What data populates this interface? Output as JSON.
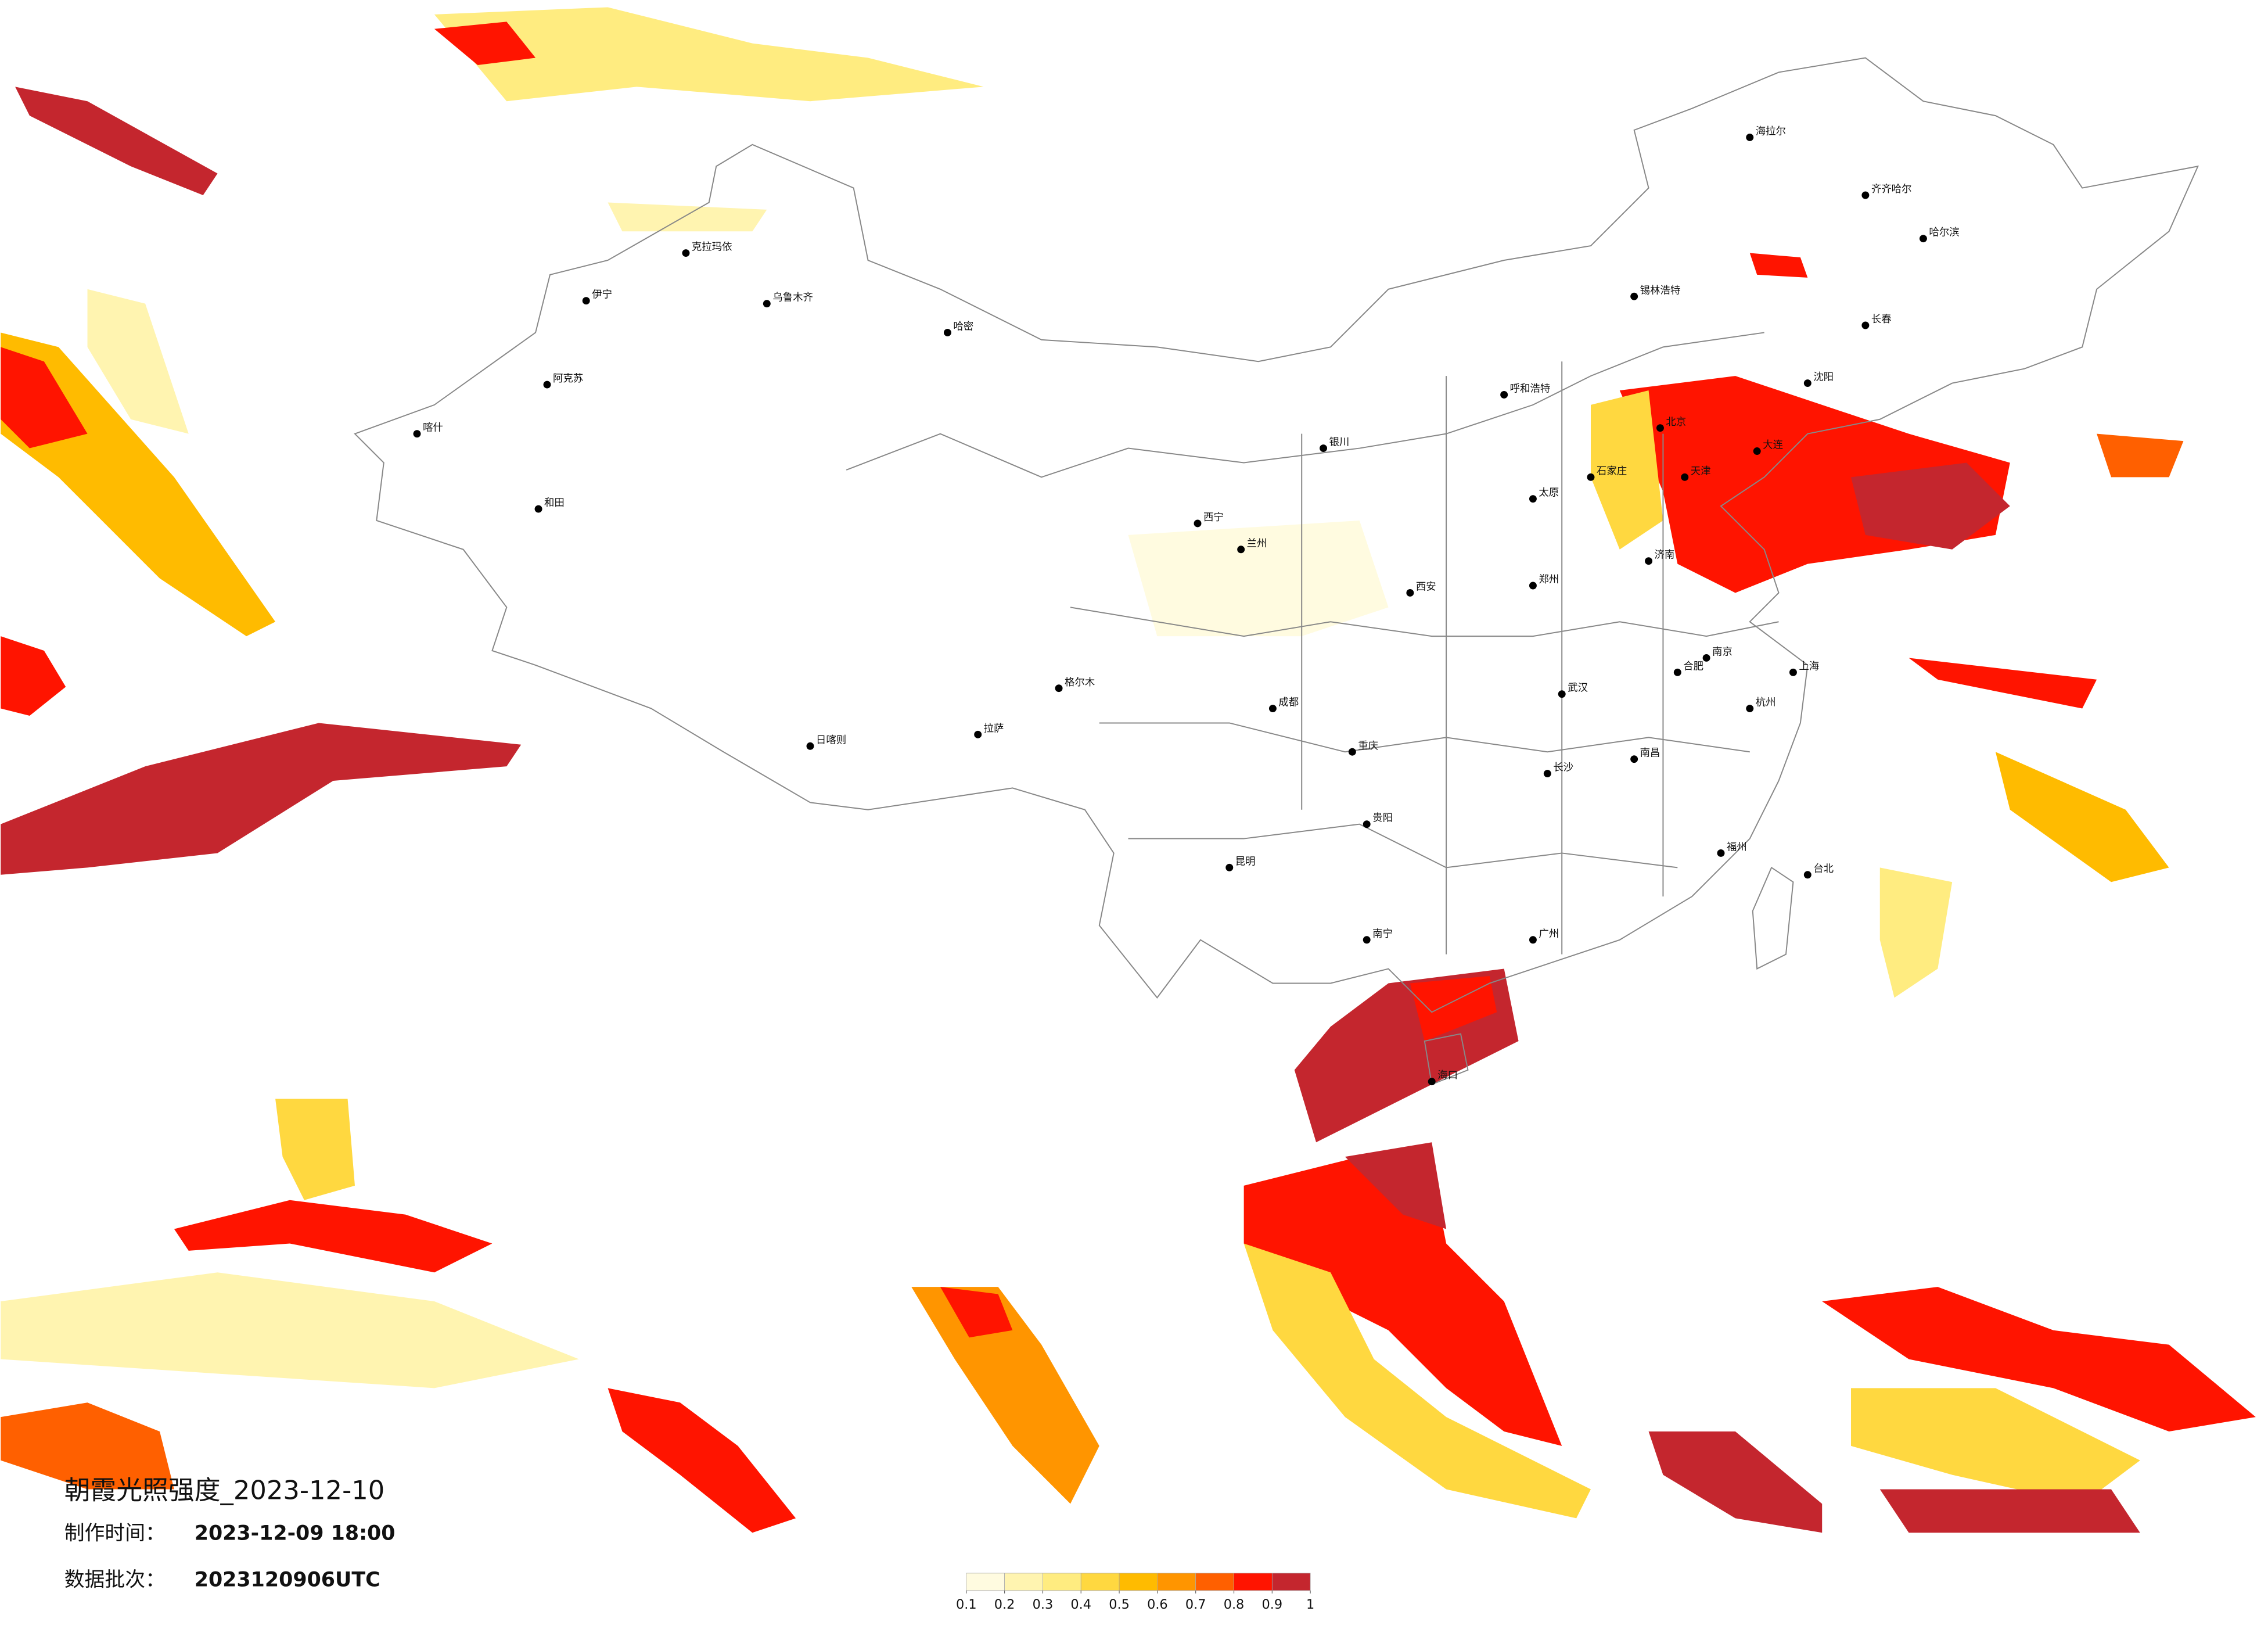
{
  "title": "朝霞光照强度_2023-12-10",
  "made_time": {
    "label": "制作时间：",
    "value": "2023-12-09 18:00"
  },
  "batch": {
    "label": "数据批次：",
    "value": "2023120906UTC"
  },
  "legend": {
    "ticks": [
      0.1,
      0.2,
      0.3,
      0.4,
      0.5,
      0.6,
      0.7,
      0.8,
      0.9,
      1
    ],
    "colors": [
      "#fffbe0",
      "#fff4b0",
      "#ffec80",
      "#ffd840",
      "#ffbb00",
      "#ff9500",
      "#ff6000",
      "#ff1400",
      "#c4262e"
    ]
  },
  "cities": [
    "克拉玛依",
    "乌鲁木齐",
    "伊宁",
    "阿克苏",
    "喀什",
    "和田",
    "哈密",
    "拉萨",
    "日喀则",
    "格尔木",
    "西宁",
    "兰州",
    "银川",
    "呼和浩特",
    "北京",
    "天津",
    "石家庄",
    "太原",
    "济南",
    "郑州",
    "西安",
    "成都",
    "重庆",
    "贵阳",
    "昆明",
    "南宁",
    "广州",
    "福州",
    "台北",
    "南京",
    "上海",
    "杭州",
    "武汉",
    "长沙",
    "南昌",
    "合肥",
    "海口",
    "沈阳",
    "长春",
    "哈尔滨",
    "齐齐哈尔",
    "海拉尔",
    "大连",
    "锡林浩特"
  ]
}
